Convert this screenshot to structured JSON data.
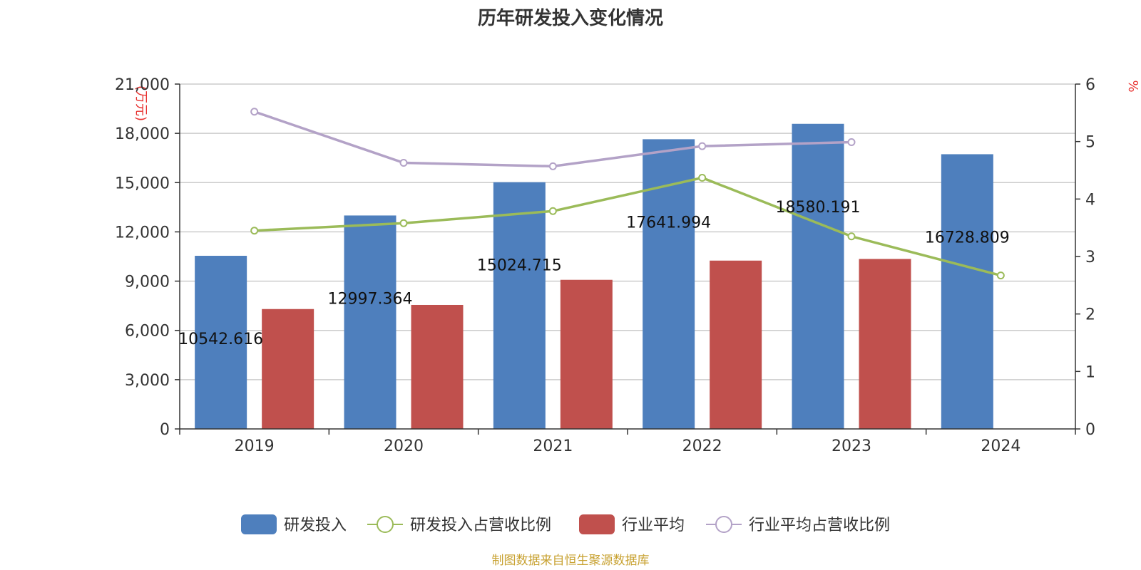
{
  "chart_data": {
    "type": "bar",
    "title": "历年研发投入变化情况",
    "categories": [
      "2019",
      "2020",
      "2021",
      "2022",
      "2023",
      "2024"
    ],
    "y_left": {
      "unit": "(万元)",
      "ylim": [
        0,
        21000
      ],
      "ticks": [
        0,
        3000,
        6000,
        9000,
        12000,
        15000,
        18000,
        21000
      ],
      "tick_labels": [
        "0",
        "3,000",
        "6,000",
        "9,000",
        "12,000",
        "15,000",
        "18,000",
        "21,000"
      ]
    },
    "y_right": {
      "unit": "%",
      "ylim": [
        0,
        6
      ],
      "ticks": [
        0,
        1,
        2,
        3,
        4,
        5,
        6
      ]
    },
    "series": [
      {
        "name": "研发投入",
        "type": "bar",
        "axis": "left",
        "color": "#4e7fbd",
        "values": [
          10542.616,
          12997.364,
          15024.715,
          17641.994,
          18580.191,
          16728.809
        ],
        "labels": [
          "10542.616",
          "12997.364",
          "15024.715",
          "17641.994",
          "18580.191",
          "16728.809"
        ]
      },
      {
        "name": "行业平均",
        "type": "bar",
        "axis": "left",
        "color": "#c0504d",
        "values": [
          7300,
          7550,
          9080,
          10250,
          10350,
          null
        ]
      },
      {
        "name": "研发投入占营收比例",
        "type": "line",
        "axis": "right",
        "color": "#9bbb59",
        "values": [
          3.45,
          3.58,
          3.79,
          4.37,
          3.35,
          2.67
        ]
      },
      {
        "name": "行业平均占营收比例",
        "type": "line",
        "axis": "right",
        "color": "#b3a2c7",
        "values": [
          5.52,
          4.63,
          4.57,
          4.92,
          4.99,
          null
        ]
      }
    ],
    "legend_position": "bottom",
    "grid": true
  },
  "source_text": "制图数据来自恒生聚源数据库"
}
